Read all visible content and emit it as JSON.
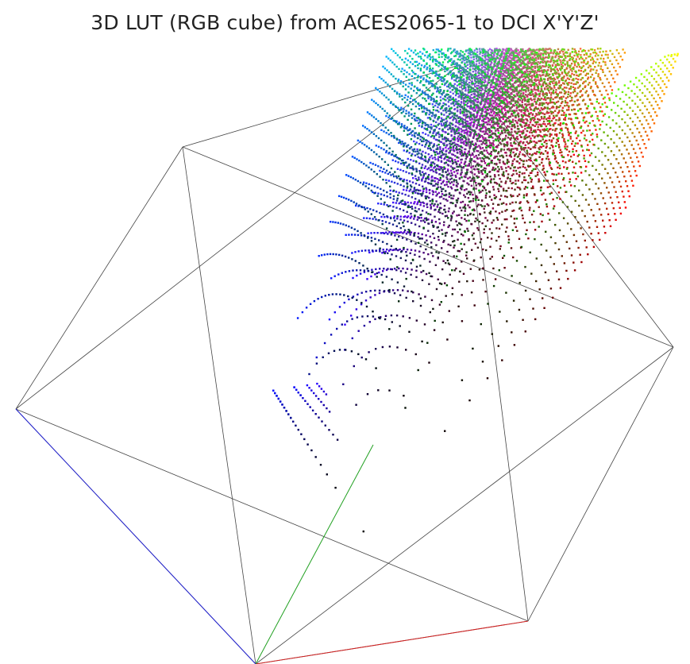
{
  "chart_data": {
    "type": "scatter",
    "title": "3D LUT (RGB cube) from ACES2065-1 to DCI X'Y'Z'",
    "xlabel": "",
    "ylabel": "",
    "lut_size": 33,
    "axes_drawn": true,
    "wireframe": "cube",
    "colors": {
      "x_axis": "#d02020",
      "y_axis": "#20a020",
      "z_axis": "#2020d0",
      "wireframe": "#444444"
    }
  }
}
